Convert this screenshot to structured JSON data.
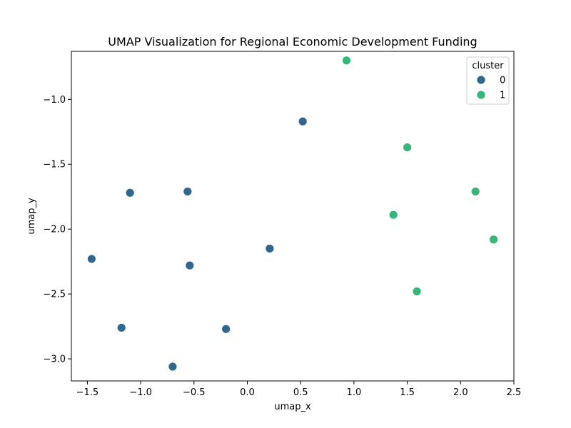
{
  "chart_data": {
    "type": "scatter",
    "title": "UMAP Visualization for Regional Economic Development Funding",
    "xlabel": "umap_x",
    "ylabel": "umap_y",
    "xlim": [
      -1.65,
      2.5
    ],
    "ylim": [
      -3.17,
      -0.63
    ],
    "xticks": [
      -1.5,
      -1.0,
      -0.5,
      0.0,
      0.5,
      1.0,
      1.5,
      2.0,
      2.5
    ],
    "xtick_labels": [
      "−1.5",
      "−1.0",
      "−0.5",
      "0.0",
      "0.5",
      "1.0",
      "1.5",
      "2.0",
      "2.5"
    ],
    "yticks": [
      -3.0,
      -2.5,
      -2.0,
      -1.5,
      -1.0
    ],
    "ytick_labels": [
      "−3.0",
      "−2.5",
      "−2.0",
      "−1.5",
      "−1.0"
    ],
    "grid": false,
    "legend": {
      "title": "cluster",
      "position": "top-right"
    },
    "series": [
      {
        "name": "0",
        "color": "#30678d",
        "points": [
          [
            0.52,
            -1.17
          ],
          [
            -0.56,
            -1.71
          ],
          [
            -1.1,
            -1.72
          ],
          [
            0.21,
            -2.15
          ],
          [
            -1.46,
            -2.23
          ],
          [
            -0.54,
            -2.28
          ],
          [
            -1.18,
            -2.76
          ],
          [
            -0.2,
            -2.77
          ],
          [
            -0.7,
            -3.06
          ]
        ]
      },
      {
        "name": "1",
        "color": "#35b779",
        "points": [
          [
            0.93,
            -0.7
          ],
          [
            1.5,
            -1.37
          ],
          [
            2.14,
            -1.71
          ],
          [
            1.37,
            -1.89
          ],
          [
            2.31,
            -2.08
          ],
          [
            1.59,
            -2.48
          ]
        ]
      }
    ]
  }
}
